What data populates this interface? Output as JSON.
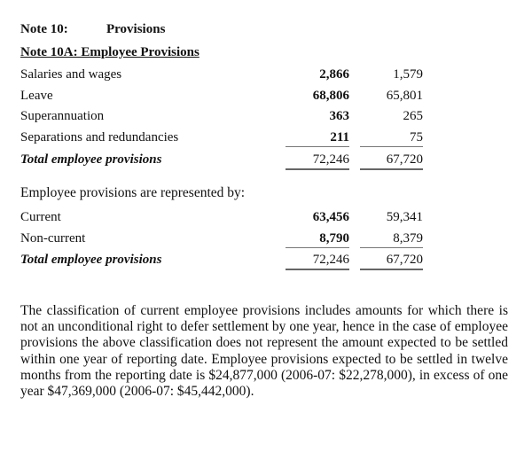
{
  "note_number": "Note 10:",
  "note_title": "Provisions",
  "subnote_title": "Note 10A:  Employee Provisions",
  "rows": [
    {
      "label": "Salaries and wages",
      "current_year": "2,866",
      "prior_year": "1,579"
    },
    {
      "label": "Leave",
      "current_year": "68,806",
      "prior_year": "65,801"
    },
    {
      "label": "Superannuation",
      "current_year": "363",
      "prior_year": "265"
    },
    {
      "label": "Separations and redundancies",
      "current_year": "211",
      "prior_year": "75"
    },
    {
      "label": "Total employee provisions",
      "current_year": "72,246",
      "prior_year": "67,720"
    }
  ],
  "represented_by_heading": "Employee provisions are represented by:",
  "represented_rows": [
    {
      "label": "Current",
      "current_year": "63,456",
      "prior_year": "59,341"
    },
    {
      "label": "Non-current",
      "current_year": "8,790",
      "prior_year": "8,379"
    },
    {
      "label": "Total employee provisions",
      "current_year": "72,246",
      "prior_year": "67,720"
    }
  ],
  "paragraph": "The classification of current employee provisions includes amounts for which there is not an unconditional right to defer settlement by one year, hence in the case of employee provisions the above classification does not represent the amount expected to be settled within one year of reporting date.  Employee provisions expected to be settled in twelve months from the reporting date is $24,877,000 (2006-07: $22,278,000), in excess of one year $47,369,000 (2006-07: $45,442,000)."
}
